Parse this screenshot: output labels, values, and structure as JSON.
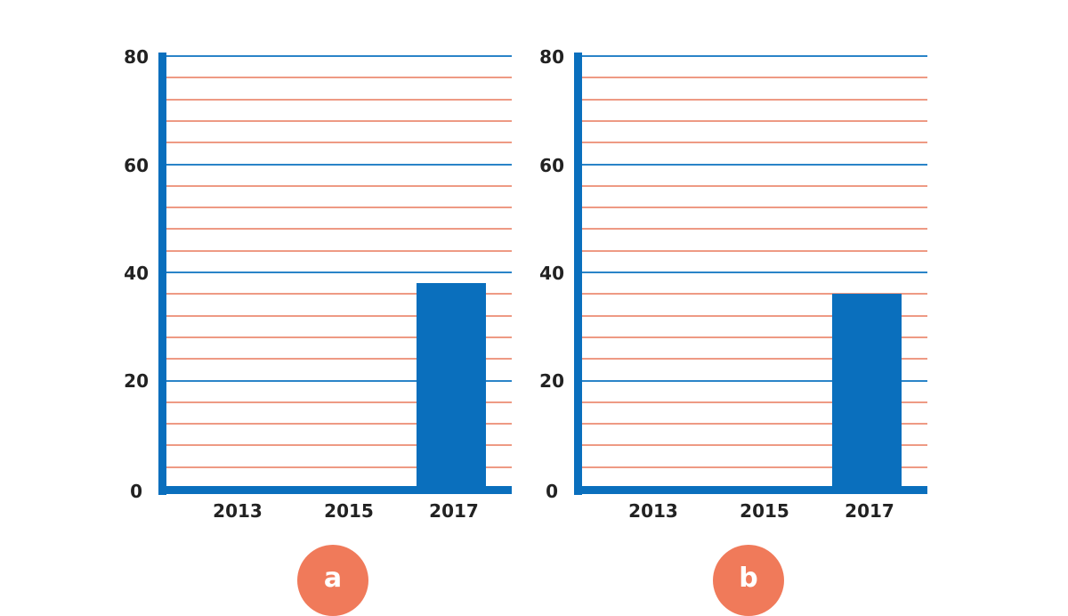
{
  "colors": {
    "axis_and_bar": "#0a6fbd",
    "major_gridline": "#2a84c8",
    "minor_gridline": "#ee9a84",
    "badge": "#f07a5a"
  },
  "charts": [
    {
      "id": "a",
      "badge_label": "a",
      "y_ticks": [
        "80",
        "60",
        "40",
        "20",
        "0"
      ],
      "x_ticks": [
        "2013",
        "2015",
        "2017"
      ]
    },
    {
      "id": "b",
      "badge_label": "b",
      "y_ticks": [
        "80",
        "60",
        "40",
        "20",
        "0"
      ],
      "x_ticks": [
        "2013",
        "2015",
        "2017"
      ]
    }
  ],
  "chart_data": [
    {
      "type": "bar",
      "title": "",
      "panel_label": "a",
      "categories": [
        "2013",
        "2015",
        "2017"
      ],
      "values": [
        0,
        0,
        38
      ],
      "xlabel": "",
      "ylabel": "",
      "ylim": [
        0,
        80
      ],
      "y_ticks": [
        0,
        20,
        40,
        60,
        80
      ],
      "grid": {
        "on": true,
        "major_step": 20,
        "minor_step": 4
      },
      "legend": null
    },
    {
      "type": "bar",
      "title": "",
      "panel_label": "b",
      "categories": [
        "2013",
        "2015",
        "2017"
      ],
      "values": [
        0,
        0,
        36
      ],
      "xlabel": "",
      "ylabel": "",
      "ylim": [
        0,
        80
      ],
      "y_ticks": [
        0,
        20,
        40,
        60,
        80
      ],
      "grid": {
        "on": true,
        "major_step": 20,
        "minor_step": 4
      },
      "legend": null
    }
  ]
}
